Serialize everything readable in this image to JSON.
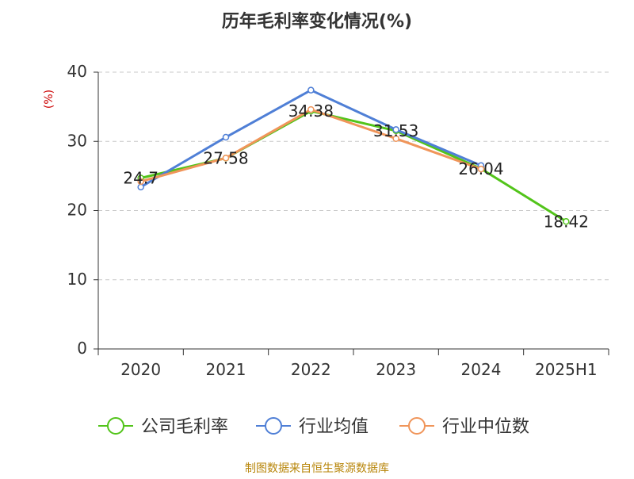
{
  "chart_data": {
    "type": "line",
    "title": "历年毛利率变化情况(%)",
    "ylabel": "(%)",
    "xlabel": "",
    "ylim": [
      0,
      40
    ],
    "yticks": [
      0,
      10,
      20,
      30,
      40
    ],
    "categories": [
      "2020",
      "2021",
      "2022",
      "2023",
      "2024",
      "2025H1"
    ],
    "grid": true,
    "legend_position": "bottom",
    "series": [
      {
        "name": "公司毛利率",
        "color": "#52c41a",
        "values": [
          24.7,
          27.58,
          34.38,
          31.53,
          26.04,
          18.42
        ],
        "labels": [
          "24.7",
          "27.58",
          "34.38",
          "31.53",
          "26.04",
          "18.42"
        ]
      },
      {
        "name": "行业均值",
        "color": "#4f7fd6",
        "values": [
          23.4,
          30.6,
          37.4,
          31.7,
          26.5,
          null
        ]
      },
      {
        "name": "行业中位数",
        "color": "#f0955a",
        "values": [
          24.2,
          27.6,
          34.6,
          30.4,
          26.0,
          null
        ]
      }
    ]
  },
  "footer": {
    "source": "制图数据来自恒生聚源数据库"
  }
}
